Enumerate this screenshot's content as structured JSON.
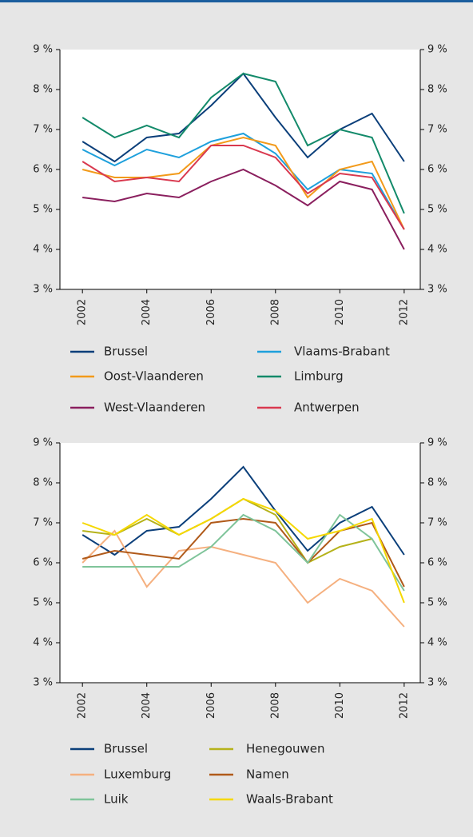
{
  "chart_data": [
    {
      "type": "line",
      "x": [
        2002,
        2003,
        2004,
        2005,
        2006,
        2007,
        2008,
        2009,
        2010,
        2011,
        2012
      ],
      "xlim": [
        2001.3,
        2012.5
      ],
      "xticks": [
        2002,
        2004,
        2006,
        2008,
        2010,
        2012
      ],
      "ylim": [
        3,
        9
      ],
      "yticks": [
        {
          "value": 3,
          "label": "3 %"
        },
        {
          "value": 4,
          "label": "4 %"
        },
        {
          "value": 5,
          "label": "5 %"
        },
        {
          "value": 6,
          "label": "6 %"
        },
        {
          "value": 7,
          "label": "7 %"
        },
        {
          "value": 8,
          "label": "8 %"
        },
        {
          "value": 9,
          "label": "9 %"
        }
      ],
      "series": [
        {
          "name": "Brussel",
          "color": "#0b3f7a",
          "values": [
            6.7,
            6.2,
            6.8,
            6.9,
            7.6,
            8.4,
            7.3,
            6.3,
            7.0,
            7.4,
            6.2
          ]
        },
        {
          "name": "Vlaams-Brabant",
          "color": "#1ea0dc",
          "values": [
            6.5,
            6.1,
            6.5,
            6.3,
            6.7,
            6.9,
            6.4,
            5.5,
            6.0,
            5.9,
            4.5
          ]
        },
        {
          "name": "Oost-Vlaanderen",
          "color": "#f29a1a",
          "values": [
            6.0,
            5.8,
            5.8,
            5.9,
            6.6,
            6.8,
            6.6,
            5.3,
            6.0,
            6.2,
            4.5
          ]
        },
        {
          "name": "Limburg",
          "color": "#138a6a",
          "values": [
            7.3,
            6.8,
            7.1,
            6.8,
            7.8,
            8.4,
            8.2,
            6.6,
            7.0,
            6.8,
            4.9
          ]
        },
        {
          "name": "West-Vlaanderen",
          "color": "#8a1f5e",
          "values": [
            5.3,
            5.2,
            5.4,
            5.3,
            5.7,
            6.0,
            5.6,
            5.1,
            5.7,
            5.5,
            4.0
          ]
        },
        {
          "name": "Antwerpen",
          "color": "#d9394f",
          "values": [
            6.2,
            5.7,
            5.8,
            5.7,
            6.6,
            6.6,
            6.3,
            5.4,
            5.9,
            5.8,
            4.5
          ]
        }
      ]
    },
    {
      "type": "line",
      "x": [
        2002,
        2003,
        2004,
        2005,
        2006,
        2007,
        2008,
        2009,
        2010,
        2011,
        2012
      ],
      "xlim": [
        2001.3,
        2012.5
      ],
      "xticks": [
        2002,
        2004,
        2006,
        2008,
        2010,
        2012
      ],
      "ylim": [
        3,
        9
      ],
      "yticks": [
        {
          "value": 3,
          "label": "3 %"
        },
        {
          "value": 4,
          "label": "4 %"
        },
        {
          "value": 5,
          "label": "5 %"
        },
        {
          "value": 6,
          "label": "6 %"
        },
        {
          "value": 7,
          "label": "7 %"
        },
        {
          "value": 8,
          "label": "8 %"
        },
        {
          "value": 9,
          "label": "9 %"
        }
      ],
      "series": [
        {
          "name": "Brussel",
          "color": "#0b3f7a",
          "values": [
            6.7,
            6.2,
            6.8,
            6.9,
            7.6,
            8.4,
            7.3,
            6.3,
            7.0,
            7.4,
            6.2
          ]
        },
        {
          "name": "Henegouwen",
          "color": "#b5b21a",
          "values": [
            6.8,
            6.7,
            7.1,
            6.7,
            7.1,
            7.6,
            7.2,
            6.0,
            6.4,
            6.6,
            null
          ]
        },
        {
          "name": "Luxemburg",
          "color": "#f5b07f",
          "values": [
            6.0,
            6.8,
            5.4,
            6.3,
            6.4,
            6.2,
            6.0,
            5.0,
            5.6,
            5.3,
            4.4
          ]
        },
        {
          "name": "Namen",
          "color": "#b05a1a",
          "values": [
            6.1,
            6.3,
            6.2,
            6.1,
            7.0,
            7.1,
            7.0,
            6.0,
            6.8,
            7.0,
            5.4
          ]
        },
        {
          "name": "Luik",
          "color": "#7fc49a",
          "values": [
            5.9,
            5.9,
            5.9,
            5.9,
            6.4,
            7.2,
            6.8,
            6.0,
            7.2,
            6.6,
            5.3
          ]
        },
        {
          "name": "Waals-Brabant",
          "color": "#f5d800",
          "values": [
            7.0,
            6.7,
            7.2,
            6.7,
            7.1,
            7.6,
            7.3,
            6.6,
            6.8,
            7.1,
            5.0
          ]
        }
      ]
    }
  ]
}
